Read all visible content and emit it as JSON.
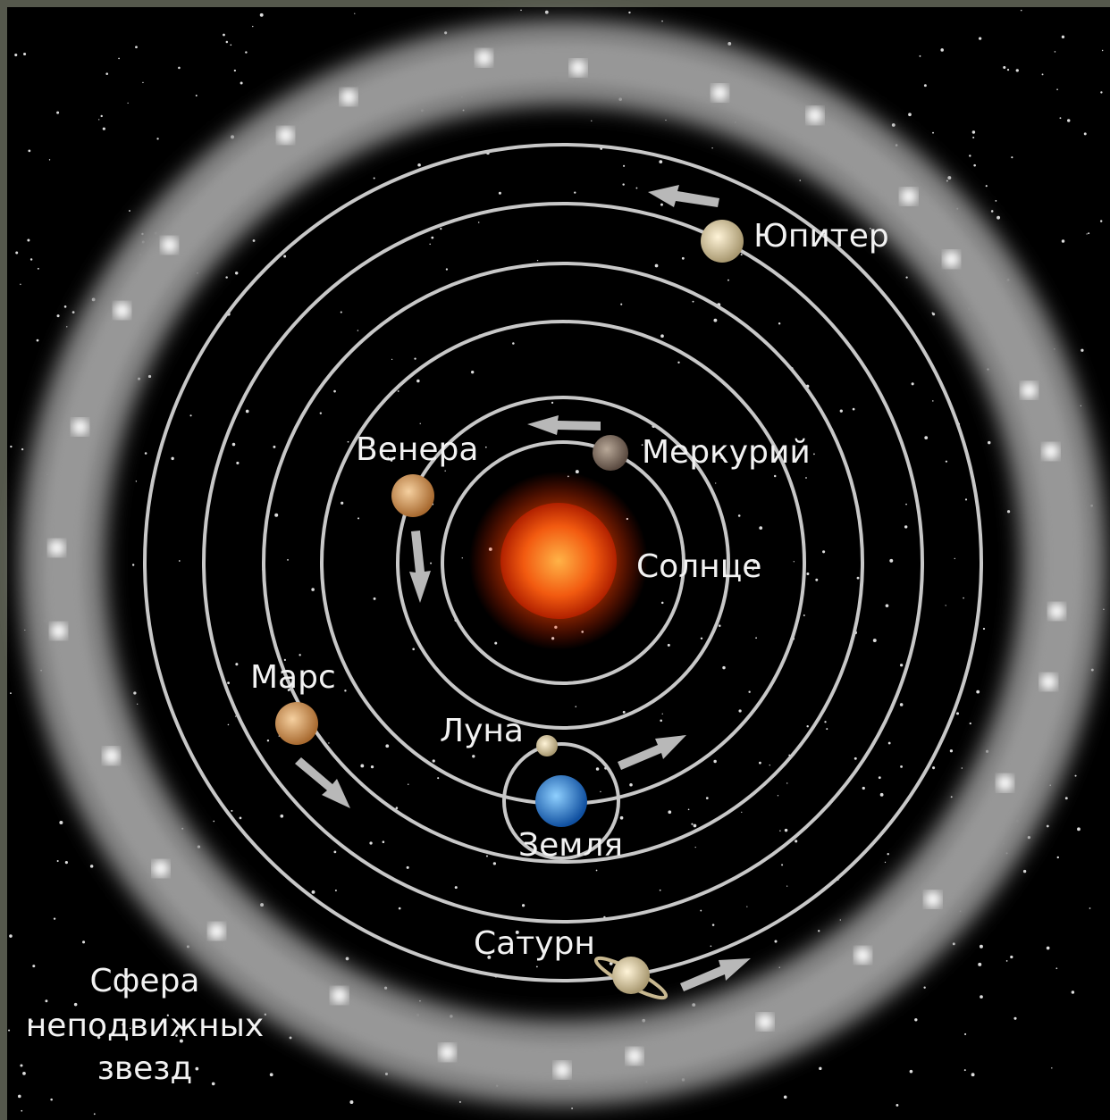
{
  "bodies": [
    {
      "label": "Юпитер"
    },
    {
      "label": "Венера"
    },
    {
      "label": "Меркурий"
    },
    {
      "label": "Солнце"
    },
    {
      "label": "Марс"
    },
    {
      "label": "Луна"
    },
    {
      "label": "Земля"
    },
    {
      "label": "Сатурн"
    }
  ],
  "fixed_stars": [
    "Сфера",
    "неподвижных",
    "звезд"
  ]
}
